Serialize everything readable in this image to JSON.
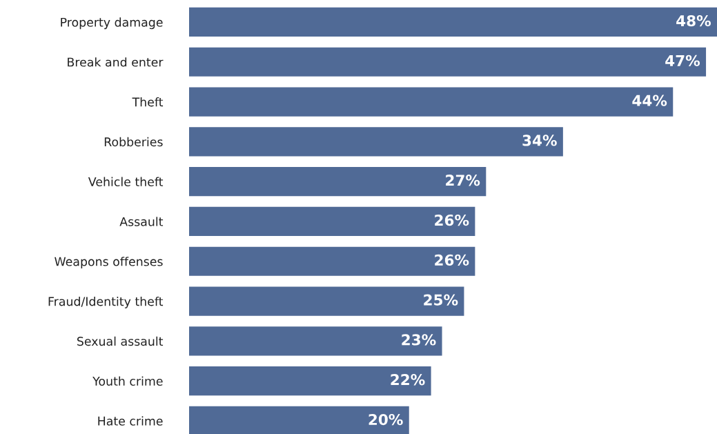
{
  "chart_data": {
    "type": "bar",
    "orientation": "horizontal",
    "categories": [
      "Property damage",
      "Break and enter",
      "Theft",
      "Robberies",
      "Vehicle theft",
      "Assault",
      "Weapons offenses",
      "Fraud/Identity theft",
      "Sexual assault",
      "Youth crime",
      "Hate crime"
    ],
    "values": [
      48,
      47,
      44,
      34,
      27,
      26,
      26,
      25,
      23,
      22,
      20
    ],
    "color": "#506a96",
    "value_labels": [
      "48%",
      "47%",
      "44%",
      "34%",
      "27%",
      "26%",
      "26%",
      "25%",
      "23%",
      "22%",
      "20%"
    ],
    "grid": false,
    "legend": false
  }
}
